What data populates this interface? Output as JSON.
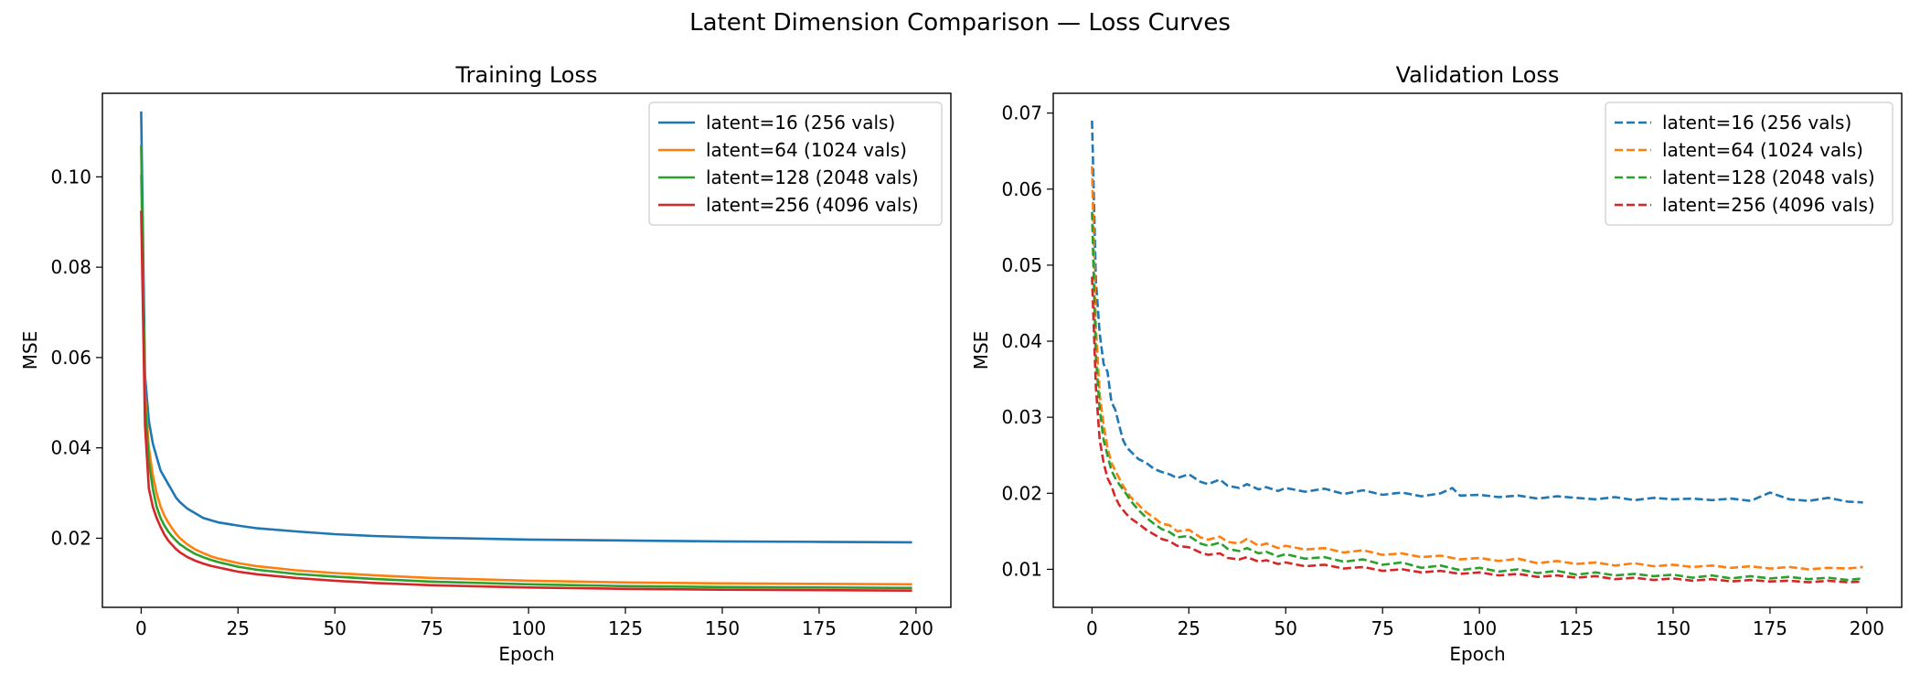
{
  "figure": {
    "title": "Latent Dimension Comparison — Loss Curves"
  },
  "chart_data": [
    {
      "type": "line",
      "title": "Training Loss",
      "xlabel": "Epoch",
      "ylabel": "MSE",
      "xlim": [
        -10,
        209
      ],
      "ylim": [
        0.0047,
        0.1185
      ],
      "xticks": [
        0,
        25,
        50,
        75,
        100,
        125,
        150,
        175,
        200
      ],
      "yticks": [
        0.02,
        0.04,
        0.06,
        0.08,
        0.1
      ],
      "ytick_labels": [
        "0.02",
        "0.04",
        "0.06",
        "0.08",
        "0.10"
      ],
      "grid": false,
      "legend": "top-right",
      "line_style": "solid",
      "series": [
        {
          "name": "latent=16 (256 vals)",
          "color": "#1f77b4",
          "x": [
            0,
            1,
            2,
            3,
            4,
            5,
            6,
            7,
            8,
            9,
            10,
            12,
            14,
            16,
            18,
            20,
            25,
            30,
            40,
            50,
            60,
            75,
            100,
            125,
            150,
            175,
            199
          ],
          "y": [
            0.1145,
            0.056,
            0.046,
            0.041,
            0.038,
            0.035,
            0.0335,
            0.032,
            0.0305,
            0.029,
            0.028,
            0.0265,
            0.0255,
            0.0245,
            0.024,
            0.0235,
            0.0228,
            0.0222,
            0.0215,
            0.0209,
            0.0205,
            0.0201,
            0.0197,
            0.0195,
            0.0193,
            0.0192,
            0.0191
          ]
        },
        {
          "name": "latent=64 (1024 vals)",
          "color": "#ff7f0e",
          "x": [
            0,
            1,
            2,
            3,
            4,
            5,
            6,
            7,
            8,
            9,
            10,
            12,
            14,
            16,
            18,
            20,
            25,
            30,
            40,
            50,
            60,
            75,
            100,
            125,
            150,
            175,
            199
          ],
          "y": [
            0.1005,
            0.052,
            0.04,
            0.034,
            0.03,
            0.027,
            0.025,
            0.0235,
            0.0222,
            0.021,
            0.02,
            0.0186,
            0.0175,
            0.0167,
            0.016,
            0.0155,
            0.0145,
            0.0138,
            0.0129,
            0.0123,
            0.0118,
            0.0112,
            0.0106,
            0.0102,
            0.01,
            0.0099,
            0.0098
          ]
        },
        {
          "name": "latent=128 (2048 vals)",
          "color": "#2ca02c",
          "x": [
            0,
            1,
            2,
            3,
            4,
            5,
            6,
            7,
            8,
            9,
            10,
            12,
            14,
            16,
            18,
            20,
            25,
            30,
            40,
            50,
            60,
            75,
            100,
            125,
            150,
            175,
            199
          ],
          "y": [
            0.107,
            0.05,
            0.037,
            0.031,
            0.027,
            0.0245,
            0.0228,
            0.0215,
            0.0204,
            0.0195,
            0.0187,
            0.0175,
            0.0165,
            0.0158,
            0.0152,
            0.0147,
            0.0137,
            0.013,
            0.0121,
            0.0115,
            0.011,
            0.0104,
            0.0098,
            0.0094,
            0.0092,
            0.0091,
            0.009
          ]
        },
        {
          "name": "latent=256 (4096 vals)",
          "color": "#d62728",
          "x": [
            0,
            1,
            2,
            3,
            4,
            5,
            6,
            7,
            8,
            9,
            10,
            12,
            14,
            16,
            18,
            20,
            25,
            30,
            40,
            50,
            60,
            75,
            100,
            125,
            150,
            175,
            199
          ],
          "y": [
            0.0925,
            0.045,
            0.031,
            0.027,
            0.0245,
            0.0225,
            0.0208,
            0.0195,
            0.0185,
            0.0176,
            0.0169,
            0.0158,
            0.015,
            0.0144,
            0.0139,
            0.0135,
            0.0126,
            0.012,
            0.0112,
            0.0106,
            0.0101,
            0.0096,
            0.0091,
            0.0088,
            0.0086,
            0.0085,
            0.0084
          ]
        }
      ]
    },
    {
      "type": "line",
      "title": "Validation Loss",
      "xlabel": "Epoch",
      "ylabel": "MSE",
      "xlim": [
        -10,
        209
      ],
      "ylim": [
        0.005,
        0.0726
      ],
      "xticks": [
        0,
        25,
        50,
        75,
        100,
        125,
        150,
        175,
        200
      ],
      "yticks": [
        0.01,
        0.02,
        0.03,
        0.04,
        0.05,
        0.06,
        0.07
      ],
      "ytick_labels": [
        "0.01",
        "0.02",
        "0.03",
        "0.04",
        "0.05",
        "0.06",
        "0.07"
      ],
      "grid": false,
      "legend": "top-right",
      "line_style": "dashed",
      "series": [
        {
          "name": "latent=16 (256 vals)",
          "color": "#1f77b4",
          "x": [
            0,
            1,
            2,
            3,
            4,
            5,
            6,
            7,
            8,
            9,
            10,
            12,
            14,
            16,
            18,
            20,
            22,
            25,
            28,
            30,
            33,
            35,
            38,
            40,
            43,
            45,
            48,
            50,
            55,
            60,
            65,
            70,
            75,
            80,
            85,
            90,
            93,
            95,
            100,
            105,
            110,
            115,
            120,
            125,
            130,
            135,
            140,
            145,
            150,
            155,
            160,
            165,
            170,
            175,
            180,
            185,
            190,
            195,
            199
          ],
          "y": [
            0.069,
            0.048,
            0.041,
            0.037,
            0.036,
            0.032,
            0.031,
            0.029,
            0.027,
            0.026,
            0.0255,
            0.0245,
            0.024,
            0.0232,
            0.0228,
            0.0225,
            0.022,
            0.0225,
            0.0215,
            0.0212,
            0.0218,
            0.021,
            0.0207,
            0.0212,
            0.0205,
            0.0208,
            0.0203,
            0.0207,
            0.0202,
            0.0206,
            0.0199,
            0.0204,
            0.0198,
            0.0201,
            0.0196,
            0.02,
            0.0207,
            0.0197,
            0.0198,
            0.0195,
            0.0197,
            0.0193,
            0.0196,
            0.0194,
            0.0192,
            0.0195,
            0.0191,
            0.0194,
            0.0192,
            0.0193,
            0.0191,
            0.0193,
            0.019,
            0.0201,
            0.0192,
            0.019,
            0.0194,
            0.0189,
            0.0188
          ]
        },
        {
          "name": "latent=64 (1024 vals)",
          "color": "#ff7f0e",
          "x": [
            0,
            1,
            2,
            3,
            4,
            5,
            6,
            7,
            8,
            9,
            10,
            12,
            14,
            16,
            18,
            20,
            22,
            25,
            28,
            30,
            33,
            35,
            38,
            40,
            43,
            45,
            48,
            50,
            55,
            60,
            65,
            70,
            75,
            80,
            85,
            90,
            95,
            100,
            105,
            110,
            115,
            120,
            125,
            130,
            135,
            140,
            145,
            150,
            155,
            160,
            165,
            170,
            175,
            180,
            185,
            190,
            195,
            199
          ],
          "y": [
            0.063,
            0.042,
            0.033,
            0.029,
            0.026,
            0.024,
            0.023,
            0.022,
            0.021,
            0.0202,
            0.0195,
            0.0185,
            0.0175,
            0.0168,
            0.016,
            0.0158,
            0.015,
            0.0152,
            0.0142,
            0.0139,
            0.0143,
            0.0136,
            0.0134,
            0.014,
            0.0131,
            0.0134,
            0.0128,
            0.0131,
            0.0126,
            0.0128,
            0.0122,
            0.0125,
            0.0119,
            0.0121,
            0.0116,
            0.0118,
            0.0113,
            0.0115,
            0.0111,
            0.0114,
            0.0108,
            0.0111,
            0.0107,
            0.0109,
            0.0105,
            0.0108,
            0.0104,
            0.0106,
            0.0103,
            0.0105,
            0.0102,
            0.0104,
            0.0101,
            0.0103,
            0.01,
            0.0102,
            0.0101,
            0.0103
          ]
        },
        {
          "name": "latent=128 (2048 vals)",
          "color": "#2ca02c",
          "x": [
            0,
            1,
            2,
            3,
            4,
            5,
            6,
            7,
            8,
            9,
            10,
            12,
            14,
            16,
            18,
            20,
            22,
            25,
            28,
            30,
            33,
            35,
            38,
            40,
            43,
            45,
            48,
            50,
            55,
            60,
            65,
            70,
            75,
            80,
            85,
            90,
            95,
            100,
            105,
            110,
            115,
            120,
            125,
            130,
            135,
            140,
            145,
            150,
            155,
            160,
            165,
            170,
            175,
            180,
            185,
            190,
            195,
            199
          ],
          "y": [
            0.057,
            0.038,
            0.031,
            0.027,
            0.025,
            0.023,
            0.022,
            0.0212,
            0.0205,
            0.0198,
            0.019,
            0.0178,
            0.0168,
            0.016,
            0.0153,
            0.0149,
            0.0142,
            0.0144,
            0.0134,
            0.0131,
            0.0135,
            0.0127,
            0.0124,
            0.0128,
            0.0121,
            0.0123,
            0.0117,
            0.012,
            0.0114,
            0.0116,
            0.011,
            0.0113,
            0.0106,
            0.0109,
            0.0102,
            0.0105,
            0.0099,
            0.0102,
            0.0097,
            0.01,
            0.0095,
            0.0098,
            0.0093,
            0.0096,
            0.0092,
            0.0094,
            0.0091,
            0.0093,
            0.0089,
            0.0092,
            0.0088,
            0.0091,
            0.0088,
            0.009,
            0.0087,
            0.0089,
            0.0086,
            0.0088
          ]
        },
        {
          "name": "latent=256 (4096 vals)",
          "color": "#d62728",
          "x": [
            0,
            1,
            2,
            3,
            4,
            5,
            6,
            7,
            8,
            9,
            10,
            12,
            14,
            16,
            18,
            20,
            22,
            25,
            28,
            30,
            33,
            35,
            38,
            40,
            43,
            45,
            48,
            50,
            55,
            60,
            65,
            70,
            75,
            80,
            85,
            90,
            95,
            100,
            105,
            110,
            115,
            120,
            125,
            130,
            135,
            140,
            145,
            150,
            155,
            160,
            165,
            170,
            175,
            180,
            185,
            190,
            195,
            199
          ],
          "y": [
            0.0485,
            0.034,
            0.027,
            0.024,
            0.022,
            0.021,
            0.0195,
            0.0185,
            0.0178,
            0.0172,
            0.0167,
            0.016,
            0.0152,
            0.0146,
            0.014,
            0.0137,
            0.0131,
            0.0129,
            0.0122,
            0.0119,
            0.0121,
            0.0115,
            0.0113,
            0.0116,
            0.011,
            0.0112,
            0.0107,
            0.0109,
            0.0104,
            0.0106,
            0.0101,
            0.0103,
            0.0098,
            0.01,
            0.0096,
            0.0098,
            0.0094,
            0.0096,
            0.0092,
            0.0094,
            0.009,
            0.0092,
            0.0089,
            0.0091,
            0.0087,
            0.0089,
            0.0086,
            0.0088,
            0.0085,
            0.0087,
            0.0084,
            0.0086,
            0.0084,
            0.0085,
            0.0083,
            0.0085,
            0.0083,
            0.0084
          ]
        }
      ]
    }
  ]
}
